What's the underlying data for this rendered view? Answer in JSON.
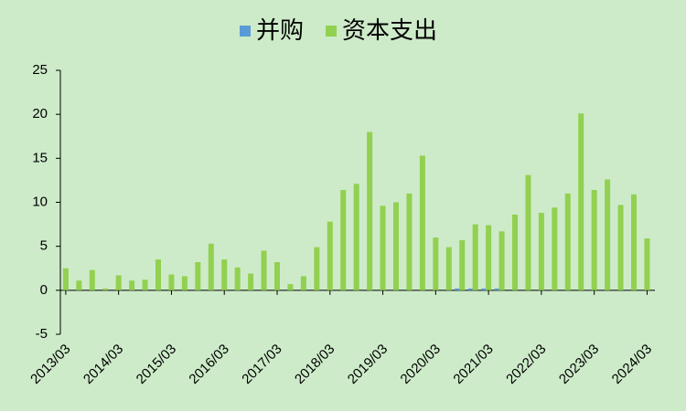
{
  "chart_data": {
    "type": "bar",
    "categories": [
      "2013/03",
      null,
      null,
      null,
      "2014/03",
      null,
      null,
      null,
      "2015/03",
      null,
      null,
      null,
      "2016/03",
      null,
      null,
      null,
      "2017/03",
      null,
      null,
      null,
      "2018/03",
      null,
      null,
      null,
      "2019/03",
      null,
      null,
      null,
      "2020/03",
      null,
      null,
      null,
      "2021/03",
      null,
      null,
      null,
      "2022/03",
      null,
      null,
      null,
      "2023/03",
      null,
      null,
      null,
      "2024/03"
    ],
    "series": [
      {
        "name": "并购",
        "color": "#5b9bd5",
        "values": [
          0,
          0,
          0,
          0,
          0,
          0,
          0,
          0,
          0,
          0,
          0,
          0,
          0,
          0,
          0,
          0,
          0,
          0,
          0,
          0,
          0,
          0,
          0,
          0,
          0,
          0,
          0,
          0,
          0,
          0,
          0.2,
          0.2,
          0.2,
          0.2,
          0,
          0,
          0,
          0,
          0,
          0,
          0,
          0,
          0,
          0,
          0
        ]
      },
      {
        "name": "资本支出",
        "color": "#92d050",
        "values": [
          2.5,
          1.1,
          2.3,
          0.2,
          1.7,
          1.1,
          1.2,
          3.5,
          1.8,
          1.6,
          3.2,
          5.3,
          3.5,
          2.6,
          1.9,
          4.5,
          3.2,
          0.7,
          1.6,
          4.9,
          7.8,
          11.4,
          12.1,
          18.0,
          9.6,
          10.0,
          11.0,
          15.3,
          6.0,
          4.9,
          5.7,
          7.5,
          7.4,
          6.7,
          8.6,
          13.1,
          8.8,
          9.4,
          11.0,
          20.1,
          11.4,
          12.6,
          9.7,
          10.9,
          5.9
        ]
      }
    ],
    "ylim": [
      -5,
      25
    ],
    "yticks": [
      -5,
      0,
      5,
      10,
      15,
      20,
      25
    ],
    "grid": false,
    "legend": "top"
  }
}
